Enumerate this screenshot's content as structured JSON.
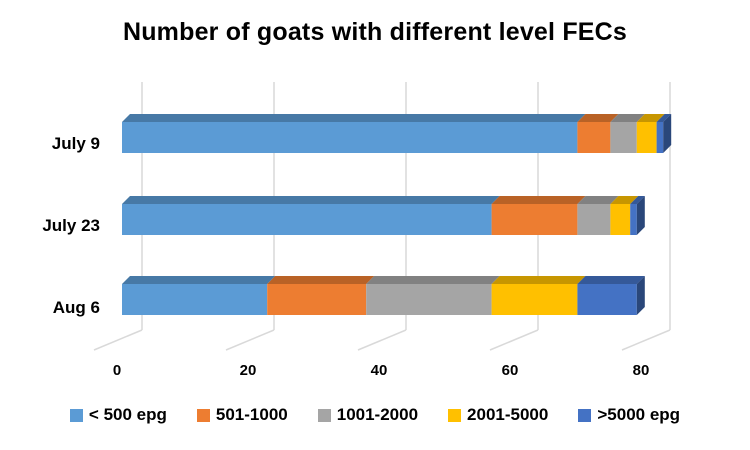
{
  "chart_data": {
    "type": "bar",
    "orientation": "horizontal",
    "stacked": true,
    "three_d": true,
    "title": "Number of goats with different level FECs",
    "xlabel": "",
    "ylabel": "",
    "categories": [
      "July 9",
      "July 23",
      "Aug 6"
    ],
    "series": [
      {
        "name": "< 500 epg",
        "color": "#5B9BD5",
        "values": [
          69,
          56,
          22
        ]
      },
      {
        "name": "501-1000",
        "color": "#ED7D31",
        "values": [
          5,
          13,
          15
        ]
      },
      {
        "name": "1001-2000",
        "color": "#A5A5A5",
        "values": [
          4,
          5,
          19
        ]
      },
      {
        "name": "2001-5000",
        "color": "#FFC000",
        "values": [
          3,
          3,
          13
        ]
      },
      {
        "name": ">5000 epg",
        "color": "#4472C4",
        "values": [
          1,
          1,
          9
        ]
      }
    ],
    "xlim": [
      0,
      80
    ],
    "xticks": [
      0,
      20,
      40,
      60,
      80
    ],
    "grid": true,
    "legend_position": "bottom"
  },
  "ticks": [
    "0",
    "20",
    "40",
    "60",
    "80"
  ],
  "categories": [
    "July 9",
    "July 23",
    "Aug 6"
  ],
  "legend": [
    "< 500 epg",
    "501-1000",
    "1001-2000",
    "2001-5000",
    ">5000 epg"
  ]
}
